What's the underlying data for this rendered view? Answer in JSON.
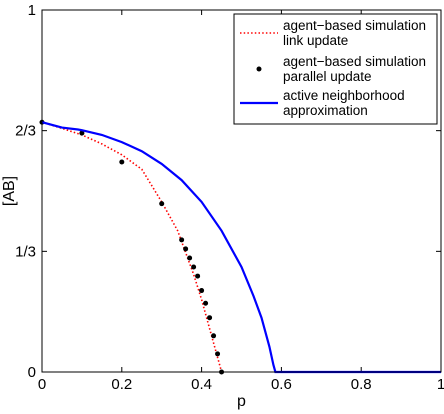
{
  "chart_data": {
    "type": "line",
    "xlabel": "p",
    "ylabel": "[AB]",
    "xlim": [
      0,
      1
    ],
    "ylim": [
      0,
      1
    ],
    "grid": false,
    "legend_placement": "top-right",
    "x_ticks": [
      {
        "value": 0,
        "label": "0"
      },
      {
        "value": 0.2,
        "label": "0.2"
      },
      {
        "value": 0.4,
        "label": "0.4"
      },
      {
        "value": 0.6,
        "label": "0.6"
      },
      {
        "value": 0.8,
        "label": "0.8"
      },
      {
        "value": 1,
        "label": "1"
      }
    ],
    "y_ticks": [
      {
        "value": 0,
        "label": "0"
      },
      {
        "value": 0.3333,
        "label": "1/3"
      },
      {
        "value": 0.6667,
        "label": "2/3"
      },
      {
        "value": 1,
        "label": "1"
      }
    ],
    "series": [
      {
        "name_lines": [
          "agent−based simulation",
          "link update"
        ],
        "style": "dotted",
        "color": "#ff0000",
        "x": [
          0,
          0.05,
          0.1,
          0.15,
          0.2,
          0.25,
          0.3,
          0.34,
          0.36,
          0.38,
          0.4,
          0.42,
          0.44,
          0.45
        ],
        "y": [
          0.69,
          0.673,
          0.655,
          0.63,
          0.6,
          0.56,
          0.47,
          0.39,
          0.33,
          0.27,
          0.2,
          0.12,
          0.04,
          0.0
        ]
      },
      {
        "name_lines": [
          "agent−based simulation",
          "parallel update"
        ],
        "style": "markers",
        "color": "#000000",
        "x": [
          0,
          0.1,
          0.2,
          0.3,
          0.35,
          0.36,
          0.37,
          0.38,
          0.39,
          0.4,
          0.41,
          0.42,
          0.43,
          0.44,
          0.45
        ],
        "y": [
          0.69,
          0.66,
          0.58,
          0.465,
          0.365,
          0.34,
          0.315,
          0.29,
          0.265,
          0.225,
          0.19,
          0.15,
          0.1,
          0.05,
          0.0
        ]
      },
      {
        "name_lines": [
          "active neighborhood",
          "approximation"
        ],
        "style": "solid",
        "color": "#0000ff",
        "x": [
          0,
          0.05,
          0.09,
          0.1,
          0.15,
          0.2,
          0.25,
          0.3,
          0.35,
          0.4,
          0.45,
          0.5,
          0.53,
          0.55,
          0.57,
          0.58,
          0.585,
          1.0
        ],
        "y": [
          0.69,
          0.675,
          0.67,
          0.668,
          0.655,
          0.635,
          0.61,
          0.575,
          0.53,
          0.47,
          0.39,
          0.29,
          0.21,
          0.15,
          0.07,
          0.02,
          0.0,
          0.0
        ]
      }
    ]
  }
}
